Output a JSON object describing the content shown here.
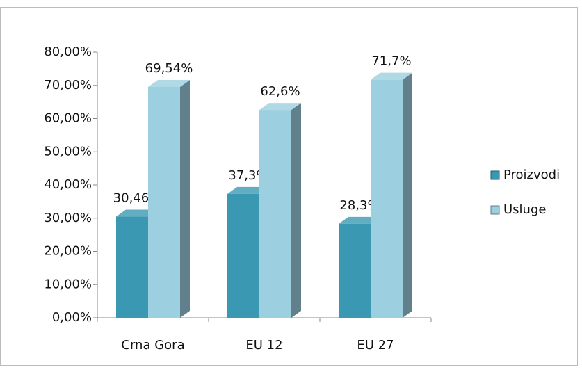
{
  "chart_data": {
    "type": "bar3d",
    "categories": [
      "Crna Gora",
      "EU 12",
      "EU 27"
    ],
    "series": [
      {
        "name": "Proizvodi",
        "color": "#3a98b3",
        "values": [
          30.46,
          37.3,
          28.3
        ],
        "value_labels": [
          "30,46%",
          "37,3%",
          "28,3%"
        ]
      },
      {
        "name": "Usluge",
        "color": "#9ccfe0",
        "values": [
          69.54,
          62.6,
          71.7
        ],
        "value_labels": [
          "69,54%",
          "62,6%",
          "71,7%"
        ]
      }
    ],
    "ylim": [
      0,
      80
    ],
    "yticks": [
      {
        "value": 0,
        "label": "0,00%"
      },
      {
        "value": 10,
        "label": "10,00%"
      },
      {
        "value": 20,
        "label": "20,00%"
      },
      {
        "value": 30,
        "label": "30,00%"
      },
      {
        "value": 40,
        "label": "40,00%"
      },
      {
        "value": 50,
        "label": "50,00%"
      },
      {
        "value": 60,
        "label": "60,00%"
      },
      {
        "value": 70,
        "label": "70,00%"
      },
      {
        "value": 80,
        "label": "80,00%"
      }
    ],
    "legend": "right"
  }
}
